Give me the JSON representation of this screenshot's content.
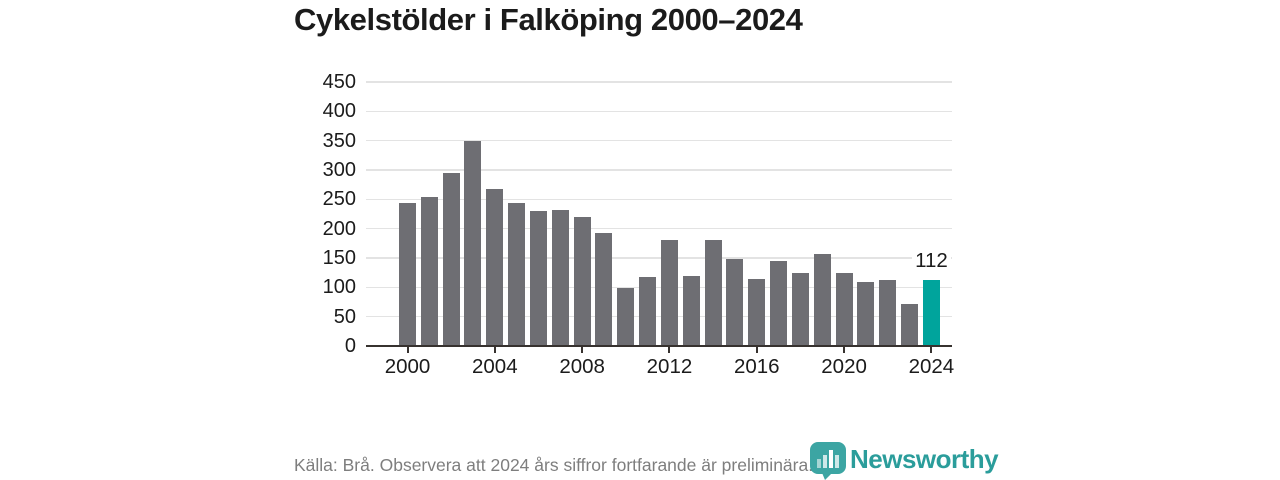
{
  "title": "Cykelstölder i Falköping 2000–2024",
  "footer": {
    "source_note": "Källa: Brå. Observera att 2024 års siffror fortfarande är preliminära."
  },
  "branding": {
    "wordmark": "Newsworthy",
    "logo_icon": "bar-chart-badge-icon",
    "brand_color": "#2b9d9b"
  },
  "colors": {
    "bar": "#6e6e73",
    "highlight": "#00a49c",
    "grid": "#e3e3e3",
    "axis": "#37322f",
    "text": "#1b1b1b",
    "footer_text": "#7e7e7e",
    "background": "#ffffff"
  },
  "chart_data": {
    "type": "bar",
    "title": "Cykelstölder i Falköping 2000–2024",
    "xlabel": "",
    "ylabel": "",
    "x": [
      2000,
      2001,
      2002,
      2003,
      2004,
      2005,
      2006,
      2007,
      2008,
      2009,
      2010,
      2011,
      2012,
      2013,
      2014,
      2015,
      2016,
      2017,
      2018,
      2019,
      2020,
      2021,
      2022,
      2023,
      2024
    ],
    "values": [
      243,
      254,
      295,
      349,
      268,
      244,
      230,
      232,
      220,
      193,
      99,
      118,
      180,
      120,
      181,
      149,
      114,
      145,
      125,
      157,
      125,
      109,
      113,
      71,
      112
    ],
    "bar_color": "#6e6e73",
    "highlight": {
      "x": 2024,
      "value": 112,
      "label": "112",
      "color": "#00a49c"
    },
    "ylim": [
      0,
      450
    ],
    "yticks": [
      0,
      50,
      100,
      150,
      200,
      250,
      300,
      350,
      400,
      450
    ],
    "xticks": [
      2000,
      2004,
      2008,
      2012,
      2016,
      2020,
      2024
    ],
    "grid": true,
    "legend": null,
    "annotations": [
      {
        "x": 2024,
        "text": "112"
      }
    ]
  }
}
